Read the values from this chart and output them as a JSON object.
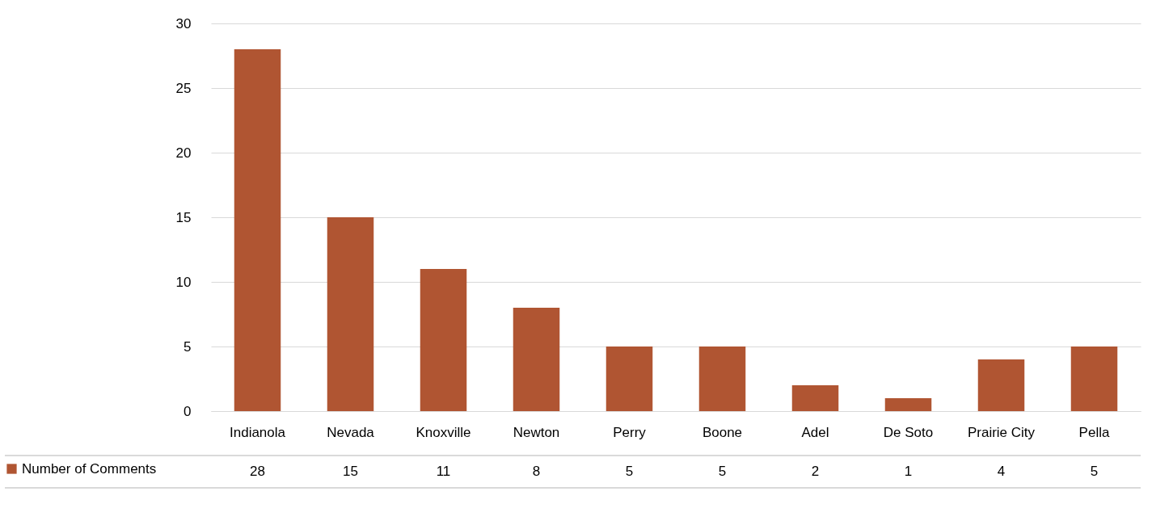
{
  "chart_data": {
    "type": "bar",
    "categories": [
      "Indianola",
      "Nevada",
      "Knoxville",
      "Newton",
      "Perry",
      "Boone",
      "Adel",
      "De Soto",
      "Prairie City",
      "Pella"
    ],
    "series": [
      {
        "name": "Number of Comments",
        "color": "#b05532",
        "values": [
          28,
          15,
          11,
          8,
          5,
          5,
          2,
          1,
          4,
          5
        ]
      }
    ],
    "ylim": [
      0,
      30
    ],
    "yticks": [
      0,
      5,
      10,
      15,
      20,
      25,
      30
    ],
    "grid": "y",
    "legend": "bottom left",
    "data_labels": true
  }
}
